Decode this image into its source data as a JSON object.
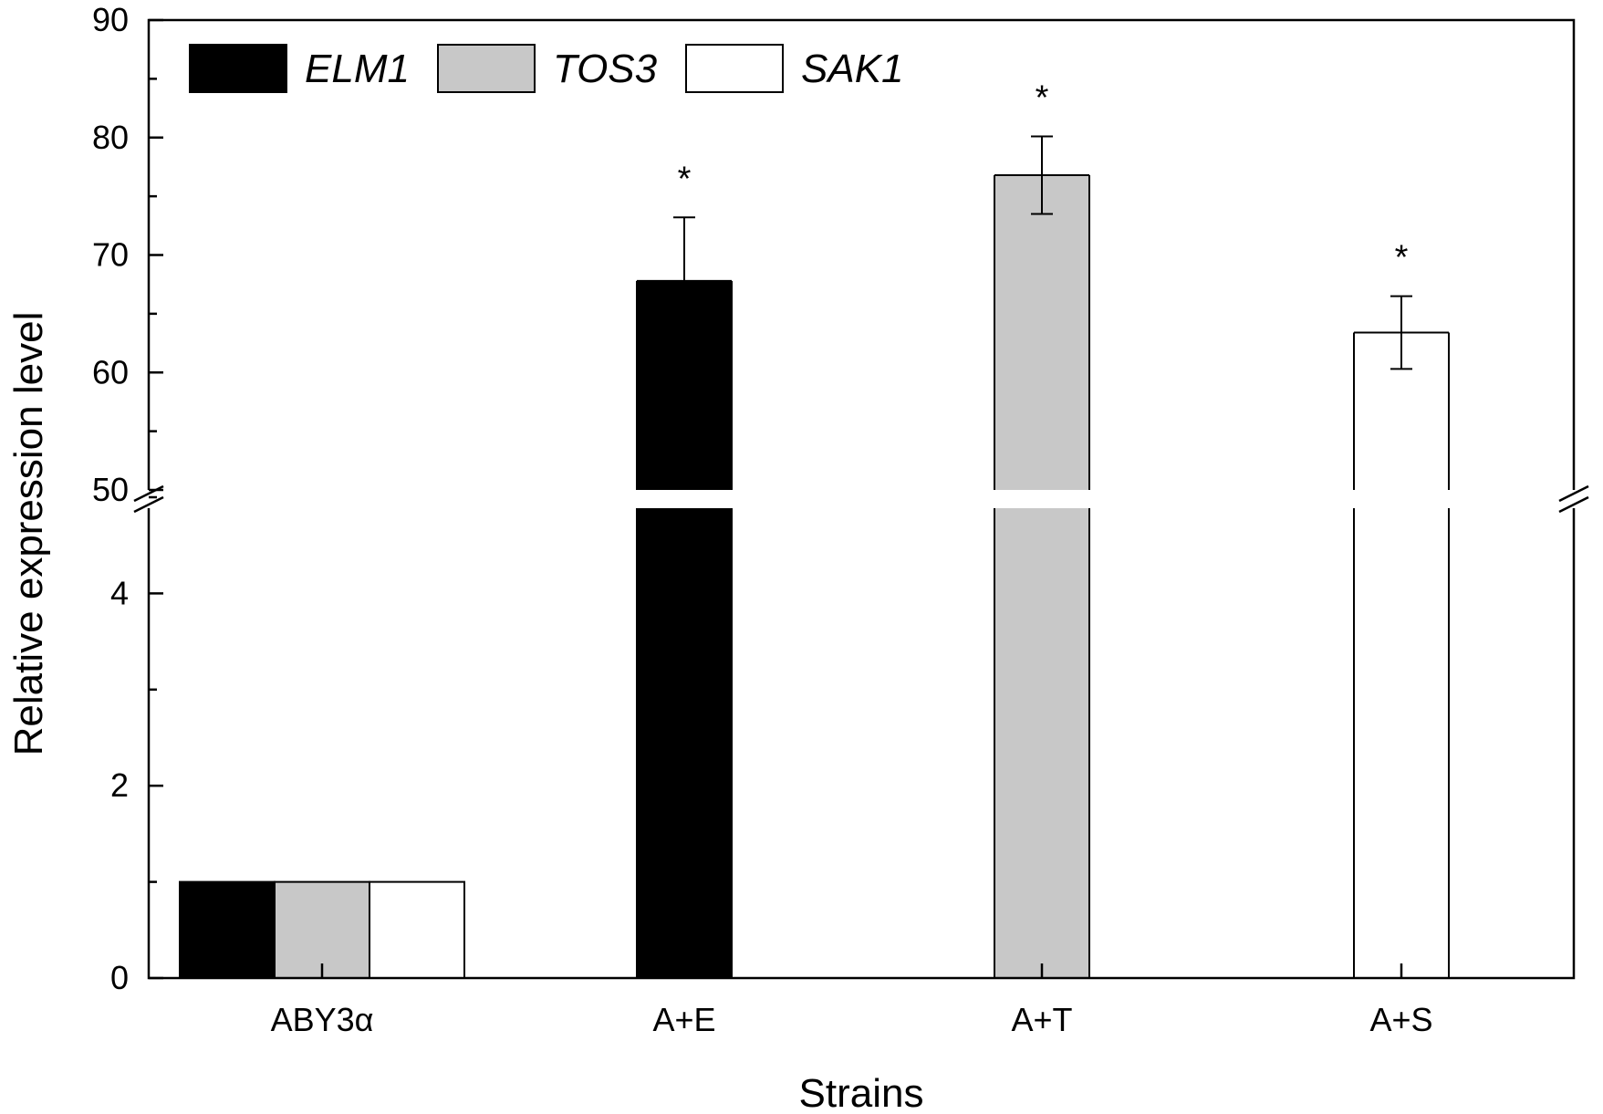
{
  "chart_data": {
    "type": "bar",
    "xlabel": "Strains",
    "ylabel": "Relative expression level",
    "axis_break": {
      "lower_range": [
        0,
        5
      ],
      "upper_range": [
        50,
        90
      ]
    },
    "lower_ticks": [
      "0",
      "2",
      "4"
    ],
    "upper_ticks": [
      "50",
      "60",
      "70",
      "80",
      "90"
    ],
    "legend": {
      "position": "top-left",
      "entries": [
        "ELM1",
        "TOS3",
        "SAK1"
      ]
    },
    "colors": {
      "ELM1": "#000000",
      "TOS3": "#c8c8c8",
      "SAK1": "#ffffff"
    },
    "categories": [
      "ABY3α",
      "A+E",
      "A+T",
      "A+S"
    ],
    "bars": [
      {
        "category": "ABY3α",
        "series": "ELM1",
        "value": 1.0
      },
      {
        "category": "ABY3α",
        "series": "TOS3",
        "value": 1.0
      },
      {
        "category": "ABY3α",
        "series": "SAK1",
        "value": 1.0
      },
      {
        "category": "A+E",
        "series": "ELM1",
        "value": 67.8,
        "error": 5.4,
        "significance": "*"
      },
      {
        "category": "A+T",
        "series": "TOS3",
        "value": 76.8,
        "error": 3.3,
        "significance": "*"
      },
      {
        "category": "A+S",
        "series": "SAK1",
        "value": 63.4,
        "error": 3.1,
        "significance": "*"
      }
    ]
  }
}
